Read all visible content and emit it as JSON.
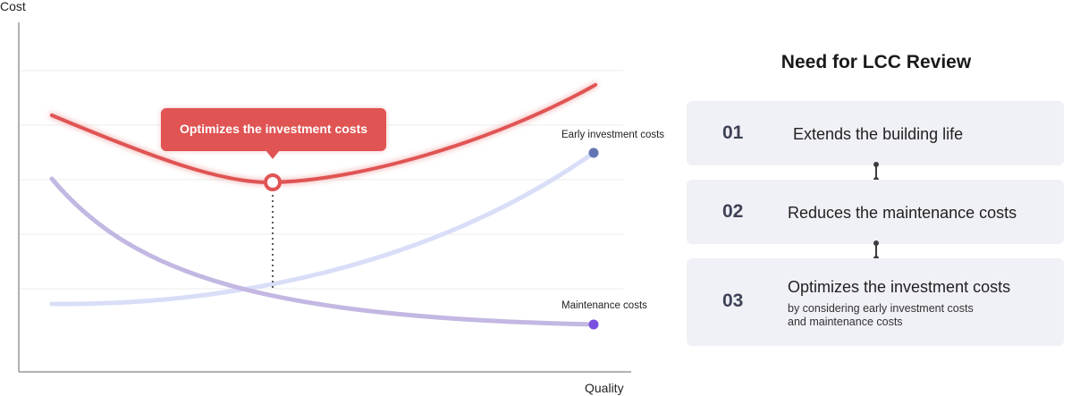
{
  "chart": {
    "y_axis_label": "Cost",
    "x_axis_label": "Quality",
    "callout": "Optimizes the investment costs",
    "curves": [
      {
        "label": "Early investment costs",
        "color": "#d9def8",
        "end_color": "#6575b4"
      },
      {
        "label": "Maintenance costs",
        "color": "#c3b8e2",
        "end_color": "#7a4fe0"
      },
      {
        "label": "",
        "color": "#e05454"
      }
    ]
  },
  "panel": {
    "title": "Need for LCC Review",
    "steps": [
      {
        "num": "01",
        "text": "Extends the building life"
      },
      {
        "num": "02",
        "text": "Reduces the maintenance costs"
      },
      {
        "num": "03",
        "text": "Optimizes the investment costs",
        "sub_line1": "by considering early investment costs",
        "sub_line2": "and maintenance costs"
      }
    ]
  },
  "colors": {
    "total": "#e05454",
    "callout_bg": "#e05454",
    "card_bg": "#f0f0f7"
  }
}
